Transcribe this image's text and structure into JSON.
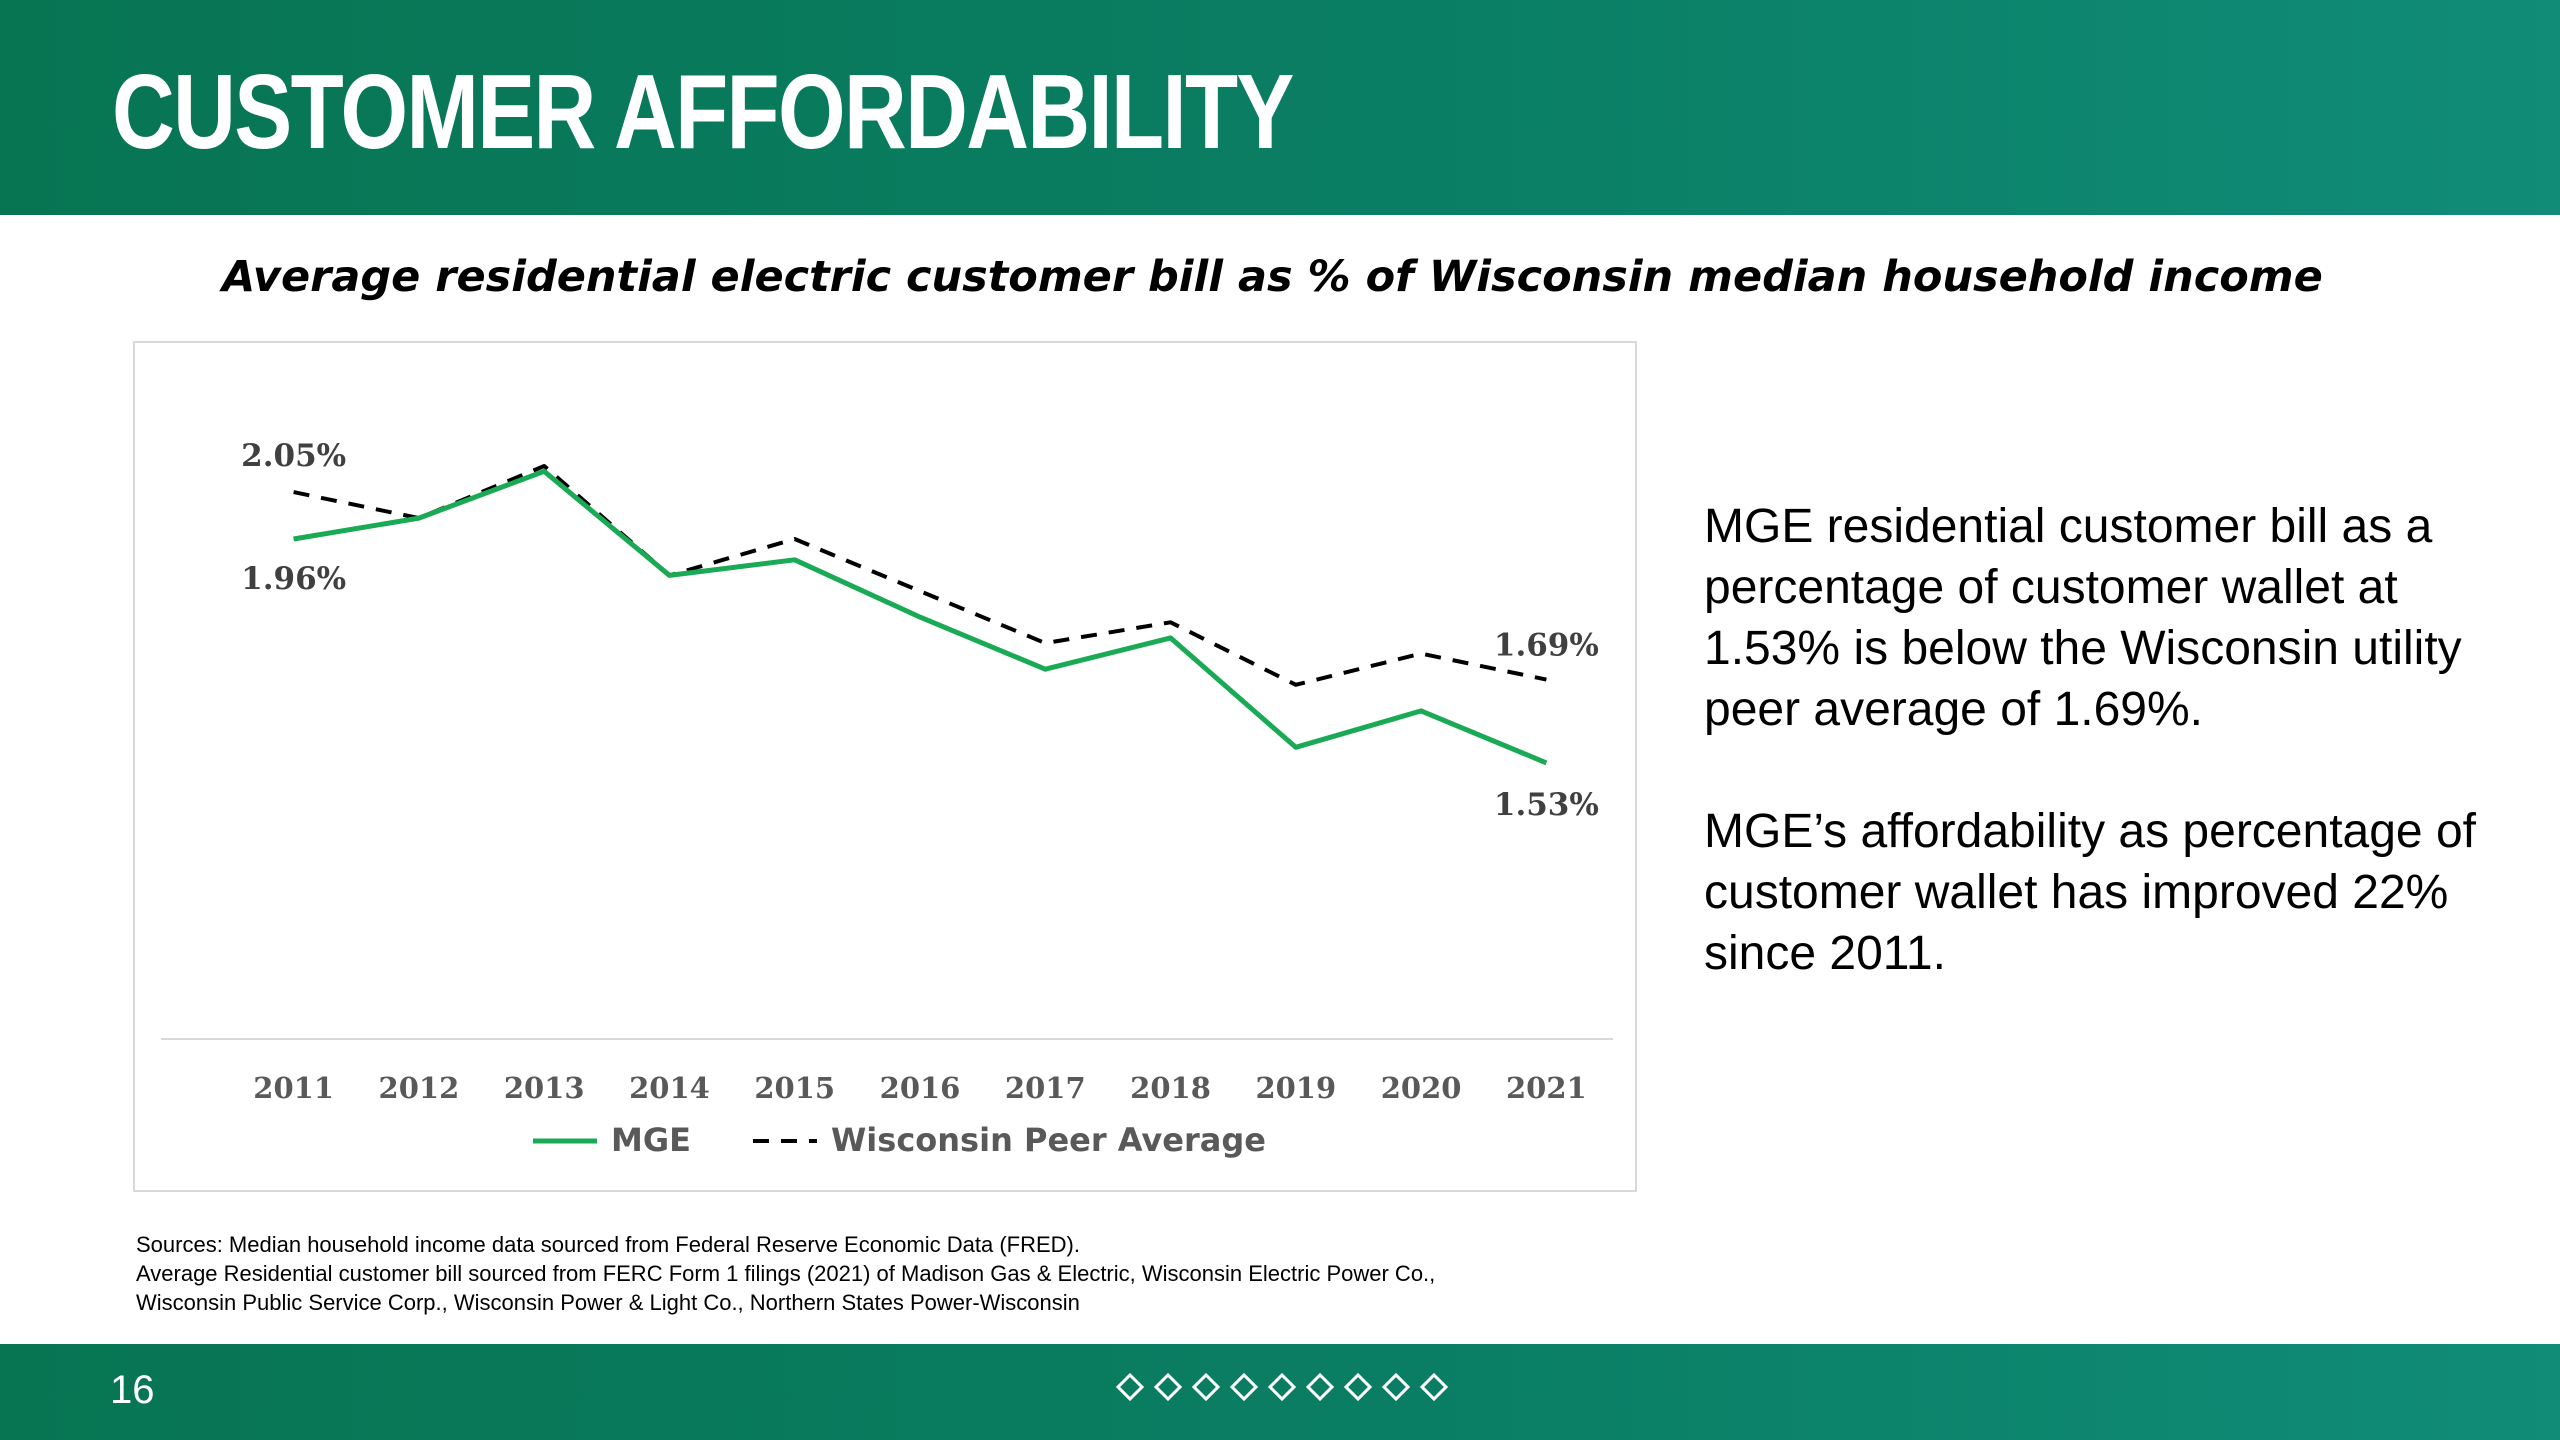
{
  "header": {
    "title": "CUSTOMER AFFORDABILITY"
  },
  "chart_title": "Average residential electric customer bill as % of Wisconsin median household income",
  "chart_data": {
    "type": "line",
    "title": "Average residential electric customer bill as % of Wisconsin median household income",
    "xlabel": "",
    "ylabel": "",
    "ylim": [
      1.0,
      2.15
    ],
    "grid": false,
    "legend_position": "bottom",
    "categories": [
      "2011",
      "2012",
      "2013",
      "2014",
      "2015",
      "2016",
      "2017",
      "2018",
      "2019",
      "2020",
      "2021"
    ],
    "series": [
      {
        "name": "MGE",
        "color": "#1aaa55",
        "style": "solid",
        "values": [
          1.96,
          2.0,
          2.09,
          1.89,
          1.92,
          1.81,
          1.71,
          1.77,
          1.56,
          1.63,
          1.53
        ]
      },
      {
        "name": "Wisconsin Peer Average",
        "color": "#000000",
        "style": "dashed",
        "values": [
          2.05,
          2.0,
          2.1,
          1.89,
          1.96,
          1.86,
          1.76,
          1.8,
          1.68,
          1.74,
          1.69
        ]
      }
    ],
    "annotations": [
      {
        "series": 1,
        "index": 0,
        "text": "2.05%"
      },
      {
        "series": 0,
        "index": 0,
        "text": "1.96%"
      },
      {
        "series": 1,
        "index": 10,
        "text": "1.69%"
      },
      {
        "series": 0,
        "index": 10,
        "text": "1.53%"
      }
    ]
  },
  "side_text": {
    "paragraph_1": "MGE residential customer bill as a percentage of customer wallet at 1.53% is below the Wisconsin utility peer average of 1.69%.",
    "paragraph_2": "MGE’s affordability as percentage of customer wallet has improved 22% since 2011."
  },
  "sources": {
    "line_1": "Sources: Median household income data sourced from Federal Reserve Economic Data (FRED).",
    "line_2": "Average Residential customer bill sourced from FERC Form 1 filings (2021) of Madison Gas & Electric, Wisconsin Electric Power Co.,",
    "line_3": "Wisconsin Public Service Corp., Wisconsin Power & Light Co., Northern States Power-Wisconsin"
  },
  "footer": {
    "page_number": "16",
    "diamond_count": 9,
    "colors": {
      "bar": "#0a7e64"
    }
  }
}
